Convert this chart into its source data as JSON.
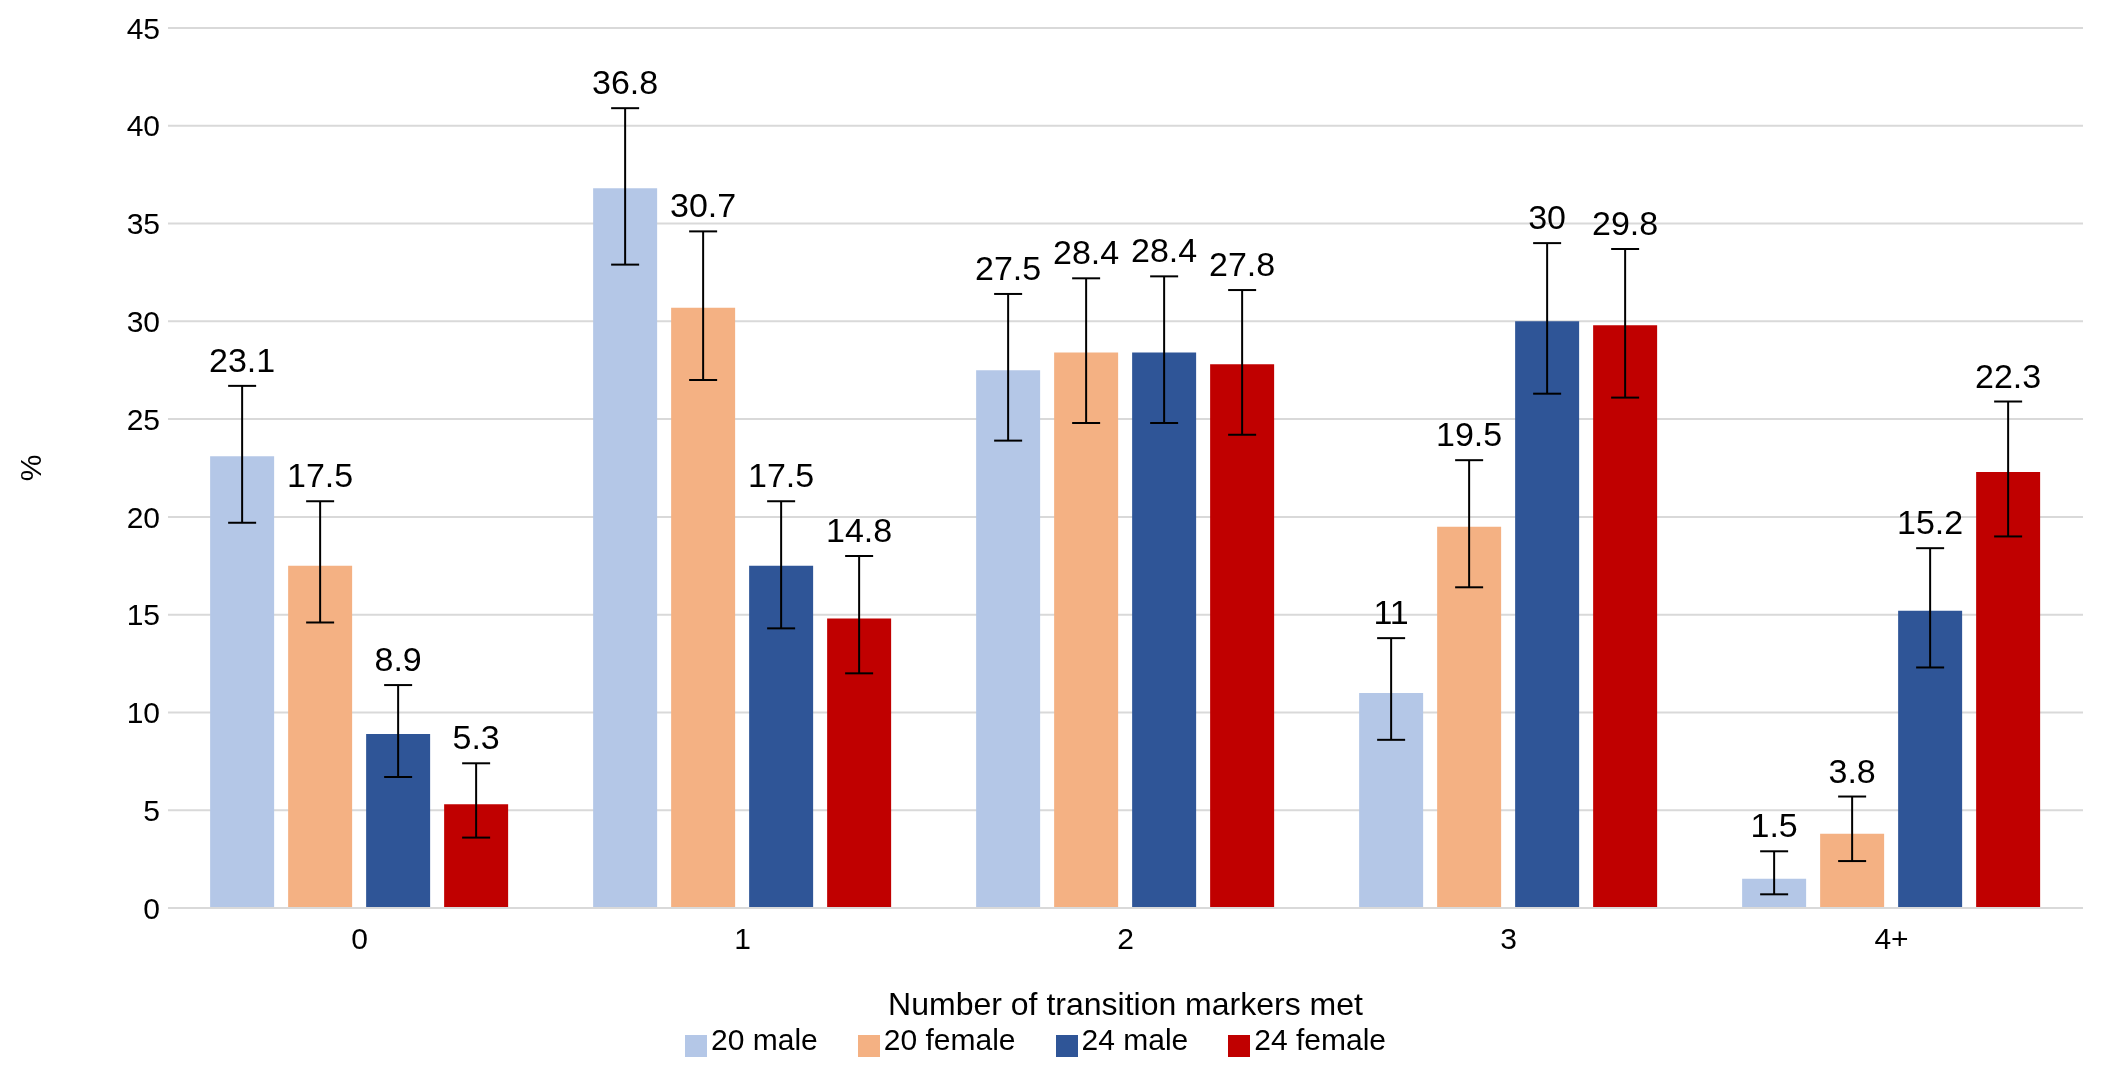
{
  "chart_data": {
    "type": "bar",
    "xlabel": "Number of transition markers met",
    "ylabel": "%",
    "categories": [
      "0",
      "1",
      "2",
      "3",
      "4+"
    ],
    "series": [
      {
        "name": "20 male",
        "color": "#b4c7e7",
        "values": [
          23.1,
          36.8,
          27.5,
          11,
          1.5
        ],
        "errors": [
          [
            19.7,
            26.7
          ],
          [
            32.9,
            40.9
          ],
          [
            23.9,
            31.4
          ],
          [
            8.6,
            13.8
          ],
          [
            0.7,
            2.9
          ]
        ]
      },
      {
        "name": "20 female",
        "color": "#f4b183",
        "values": [
          17.5,
          30.7,
          28.4,
          19.5,
          3.8
        ],
        "errors": [
          [
            14.6,
            20.8
          ],
          [
            27.0,
            34.6
          ],
          [
            24.8,
            32.2
          ],
          [
            16.4,
            22.9
          ],
          [
            2.4,
            5.7
          ]
        ]
      },
      {
        "name": "24 male",
        "color": "#2f5597",
        "values": [
          8.9,
          17.5,
          28.4,
          30,
          15.2
        ],
        "errors": [
          [
            6.7,
            11.4
          ],
          [
            14.3,
            20.8
          ],
          [
            24.8,
            32.3
          ],
          [
            26.3,
            34.0
          ],
          [
            12.3,
            18.4
          ]
        ]
      },
      {
        "name": "24 female",
        "color": "#c00000",
        "values": [
          5.3,
          14.8,
          27.8,
          29.8,
          22.3
        ],
        "errors": [
          [
            3.6,
            7.4
          ],
          [
            12.0,
            18.0
          ],
          [
            24.2,
            31.6
          ],
          [
            26.1,
            33.7
          ],
          [
            19.0,
            25.9
          ]
        ]
      }
    ],
    "ylim": [
      0,
      45
    ],
    "yticks": [
      0,
      5,
      10,
      15,
      20,
      25,
      30,
      35,
      40,
      45
    ],
    "grid": "y",
    "legend": "bottom",
    "data_labels": true
  }
}
